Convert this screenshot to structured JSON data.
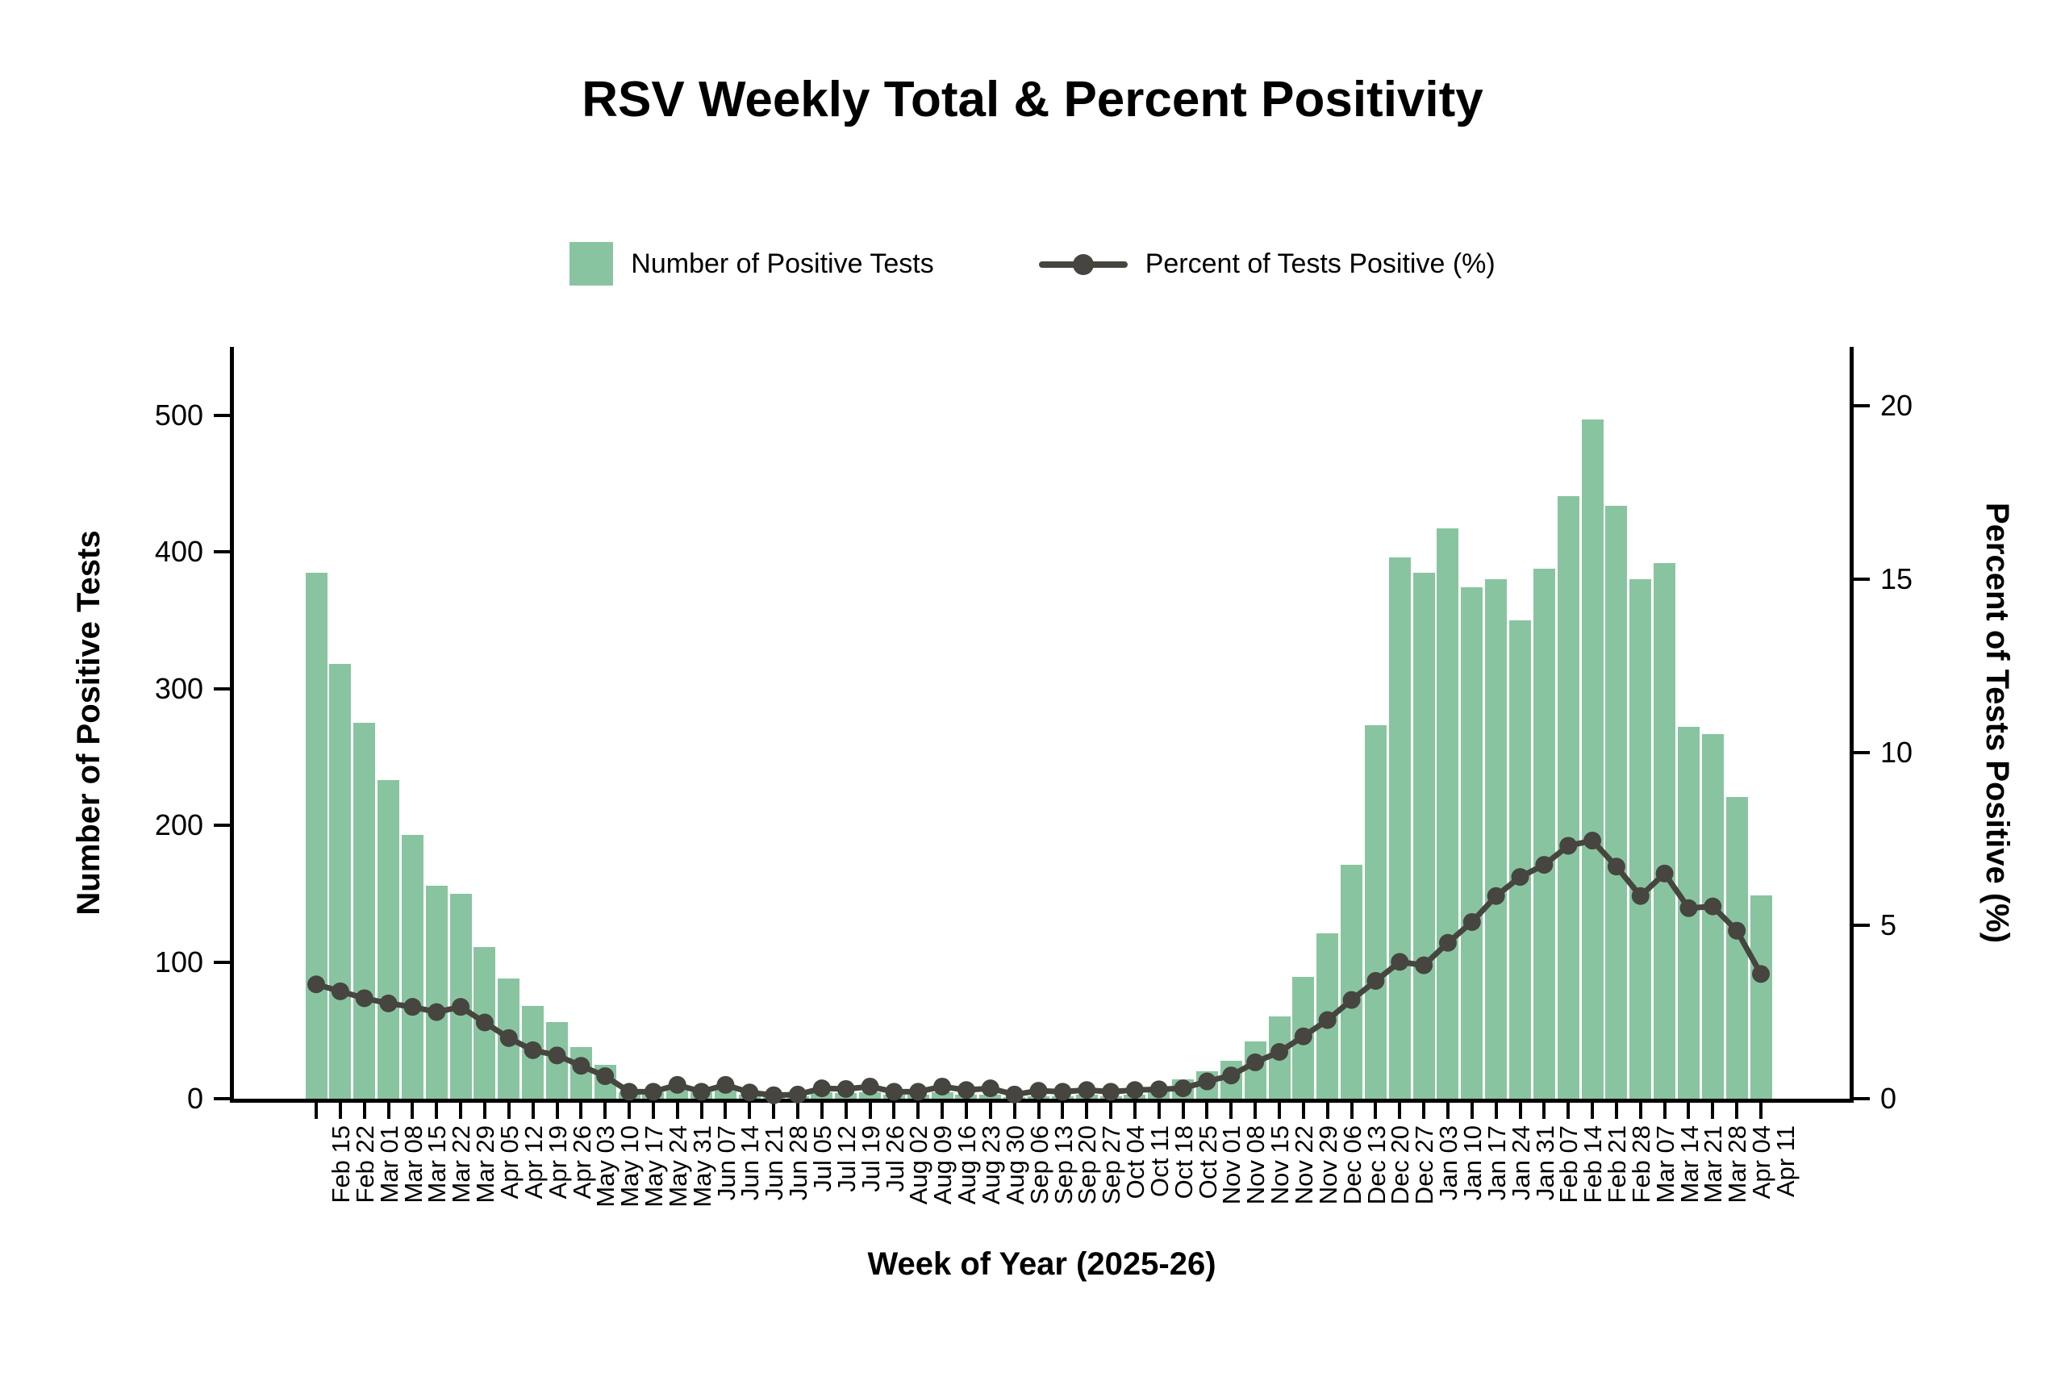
{
  "title": "RSV Weekly Total & Percent Positivity",
  "legend": {
    "bar_label": "Number of Positive Tests",
    "line_label": "Percent of Tests Positive (%)"
  },
  "axes": {
    "x_label": "Week of Year (2025-26)",
    "y_left_label": "Number of Positive Tests",
    "y_right_label": "Percent of Tests Positive (%)",
    "y_left_ticks": [
      0,
      100,
      200,
      300,
      400,
      500
    ],
    "y_right_ticks": [
      0,
      5,
      10,
      15,
      20
    ]
  },
  "colors": {
    "bar": "#89C4A0",
    "line": "#46453F",
    "axis": "#000000"
  },
  "chart_data": {
    "type": "bar+line",
    "title": "RSV Weekly Total & Percent Positivity",
    "xlabel": "Week of Year (2025-26)",
    "ylabel_left": "Number of Positive Tests",
    "ylabel_right": "Percent of Tests Positive (%)",
    "ylim_left": [
      0,
      550
    ],
    "ylim_right": [
      0,
      21.7
    ],
    "grid": false,
    "legend_position": "top",
    "categories": [
      "Feb 15",
      "Feb 22",
      "Mar 01",
      "Mar 08",
      "Mar 15",
      "Mar 22",
      "Mar 29",
      "Apr 05",
      "Apr 12",
      "Apr 19",
      "Apr 26",
      "May 03",
      "May 10",
      "May 17",
      "May 24",
      "May 31",
      "Jun 07",
      "Jun 14",
      "Jun 21",
      "Jun 28",
      "Jul 05",
      "Jul 12",
      "Jul 19",
      "Jul 26",
      "Aug 02",
      "Aug 09",
      "Aug 16",
      "Aug 23",
      "Aug 30",
      "Sep 06",
      "Sep 13",
      "Sep 20",
      "Sep 27",
      "Oct 04",
      "Oct 11",
      "Oct 18",
      "Oct 25",
      "Nov 01",
      "Nov 08",
      "Nov 15",
      "Nov 22",
      "Nov 29",
      "Dec 06",
      "Dec 13",
      "Dec 20",
      "Dec 27",
      "Jan 03",
      "Jan 10",
      "Jan 17",
      "Jan 24",
      "Jan 31",
      "Feb 07",
      "Feb 14",
      "Feb 21",
      "Feb 28",
      "Mar 07",
      "Mar 14",
      "Mar 21",
      "Mar 28",
      "Apr 04",
      "Apr 11"
    ],
    "series": [
      {
        "name": "Number of Positive Tests",
        "type": "bar",
        "yaxis": "left",
        "color": "#89C4A0",
        "values": [
          385,
          318,
          275,
          233,
          193,
          156,
          150,
          111,
          88,
          68,
          56,
          38,
          25,
          5,
          5,
          10,
          5,
          9,
          3,
          2,
          2,
          5,
          4,
          5,
          3,
          3,
          5,
          3,
          3,
          1,
          2,
          2,
          3,
          2,
          3,
          6,
          14,
          20,
          28,
          42,
          60,
          89,
          121,
          171,
          273,
          396,
          385,
          417,
          374,
          380,
          350,
          388,
          441,
          497,
          434,
          380,
          392,
          272,
          267,
          221,
          149
        ]
      },
      {
        "name": "Percent of Tests Positive (%)",
        "type": "line",
        "yaxis": "right",
        "color": "#46453F",
        "values": [
          3.3,
          3.1,
          2.9,
          2.75,
          2.65,
          2.5,
          2.65,
          2.2,
          1.75,
          1.4,
          1.25,
          0.95,
          0.65,
          0.2,
          0.2,
          0.4,
          0.2,
          0.4,
          0.18,
          0.1,
          0.12,
          0.3,
          0.28,
          0.35,
          0.2,
          0.2,
          0.35,
          0.25,
          0.3,
          0.12,
          0.23,
          0.2,
          0.25,
          0.2,
          0.25,
          0.27,
          0.3,
          0.5,
          0.67,
          1.05,
          1.35,
          1.8,
          2.27,
          2.85,
          3.4,
          3.95,
          3.85,
          4.5,
          5.1,
          5.85,
          6.4,
          6.75,
          7.3,
          7.45,
          6.7,
          5.85,
          6.5,
          5.5,
          5.55,
          4.85,
          3.6
        ]
      }
    ]
  }
}
